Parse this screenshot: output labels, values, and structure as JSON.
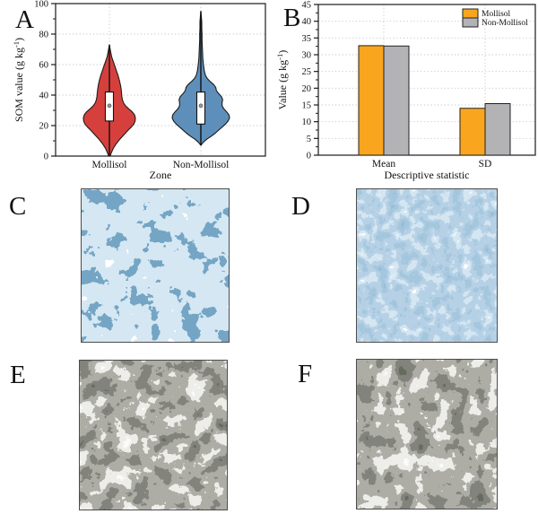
{
  "figure": {
    "background": "#ffffff",
    "panels": {
      "A": {
        "label": "A",
        "type": "violin-plot"
      },
      "B": {
        "label": "B",
        "type": "grouped-bar-chart"
      },
      "C": {
        "label": "C",
        "type": "classified-som-map",
        "palette": [
          "#ffffff",
          "#a9cbe2",
          "#2e618f"
        ]
      },
      "D": {
        "label": "D",
        "type": "continuous-som-map",
        "palette": [
          "#ffffff",
          "#a9cbe2",
          "#6d9ec7",
          "#4a80ad"
        ]
      },
      "E": {
        "label": "E",
        "type": "satellite-image",
        "palette": [
          "#f5f4f0",
          "#d9d8d2",
          "#6b6b60",
          "#32352a"
        ]
      },
      "F": {
        "label": "F",
        "type": "satellite-image",
        "palette": [
          "#f5f4f0",
          "#d9d8d2",
          "#6b6b60",
          "#32352a"
        ]
      }
    }
  },
  "chart_data": [
    {
      "type": "violin",
      "title": "",
      "xlabel": "Zone",
      "ylabel": "SOM value (g kg⁻¹)",
      "categories": [
        "Mollisol",
        "Non-Mollisol"
      ],
      "ylim": [
        0,
        100
      ],
      "yticks": [
        0,
        20,
        40,
        60,
        80,
        100
      ],
      "grid": "dotted horizontal at yticks, dotted vertical at categories",
      "series": [
        {
          "name": "Mollisol",
          "color": "#d5403d",
          "min": 0,
          "max": 73,
          "q1": 23,
          "median": 33,
          "q3": 42,
          "profile": [
            [
              0,
              0.03
            ],
            [
              2,
              0.07
            ],
            [
              5,
              0.15
            ],
            [
              8,
              0.26
            ],
            [
              11,
              0.4
            ],
            [
              14,
              0.56
            ],
            [
              17,
              0.72
            ],
            [
              19,
              0.84
            ],
            [
              21,
              0.94
            ],
            [
              23,
              0.99
            ],
            [
              25,
              1.0
            ],
            [
              27,
              0.97
            ],
            [
              29,
              0.88
            ],
            [
              31,
              0.74
            ],
            [
              33,
              0.62
            ],
            [
              35,
              0.54
            ],
            [
              37,
              0.5
            ],
            [
              39,
              0.48
            ],
            [
              41,
              0.47
            ],
            [
              44,
              0.45
            ],
            [
              47,
              0.42
            ],
            [
              50,
              0.38
            ],
            [
              53,
              0.33
            ],
            [
              56,
              0.27
            ],
            [
              59,
              0.21
            ],
            [
              62,
              0.15
            ],
            [
              65,
              0.09
            ],
            [
              68,
              0.05
            ],
            [
              71,
              0.02
            ],
            [
              73,
              0
            ]
          ]
        },
        {
          "name": "Non-Mollisol",
          "color": "#5e8fba",
          "min": 7,
          "max": 95,
          "q1": 21,
          "median": 33,
          "q3": 42,
          "profile": [
            [
              7,
              0
            ],
            [
              9,
              0.08
            ],
            [
              11,
              0.2
            ],
            [
              13,
              0.36
            ],
            [
              15,
              0.5
            ],
            [
              17,
              0.62
            ],
            [
              19,
              0.74
            ],
            [
              21,
              0.86
            ],
            [
              23,
              0.95
            ],
            [
              25,
              1.0
            ],
            [
              27,
              0.98
            ],
            [
              29,
              0.9
            ],
            [
              31,
              0.8
            ],
            [
              33,
              0.74
            ],
            [
              35,
              0.74
            ],
            [
              37,
              0.76
            ],
            [
              39,
              0.72
            ],
            [
              41,
              0.62
            ],
            [
              43,
              0.54
            ],
            [
              45,
              0.52
            ],
            [
              47,
              0.44
            ],
            [
              49,
              0.32
            ],
            [
              51,
              0.22
            ],
            [
              53,
              0.16
            ],
            [
              56,
              0.12
            ],
            [
              60,
              0.09
            ],
            [
              64,
              0.07
            ],
            [
              68,
              0.06
            ],
            [
              72,
              0.05
            ],
            [
              76,
              0.04
            ],
            [
              80,
              0.04
            ],
            [
              84,
              0.03
            ],
            [
              88,
              0.03
            ],
            [
              91,
              0.02
            ],
            [
              93,
              0.01
            ],
            [
              95,
              0
            ]
          ]
        }
      ]
    },
    {
      "type": "bar",
      "title": "",
      "xlabel": "Descriptive statistic",
      "ylabel": "Value (g kg⁻¹)",
      "categories": [
        "Mean",
        "SD"
      ],
      "ylim": [
        0,
        45
      ],
      "ytick_step": 5,
      "legend_position": "top-right",
      "grid": "dotted horizontal at yticks, dotted vertical at categories",
      "series": [
        {
          "name": "Mollisol",
          "color": "#f9a61e",
          "values": [
            32.7,
            14.0
          ]
        },
        {
          "name": "Non-Mollisol",
          "color": "#b3b3b6",
          "values": [
            32.6,
            15.4
          ]
        }
      ]
    }
  ]
}
